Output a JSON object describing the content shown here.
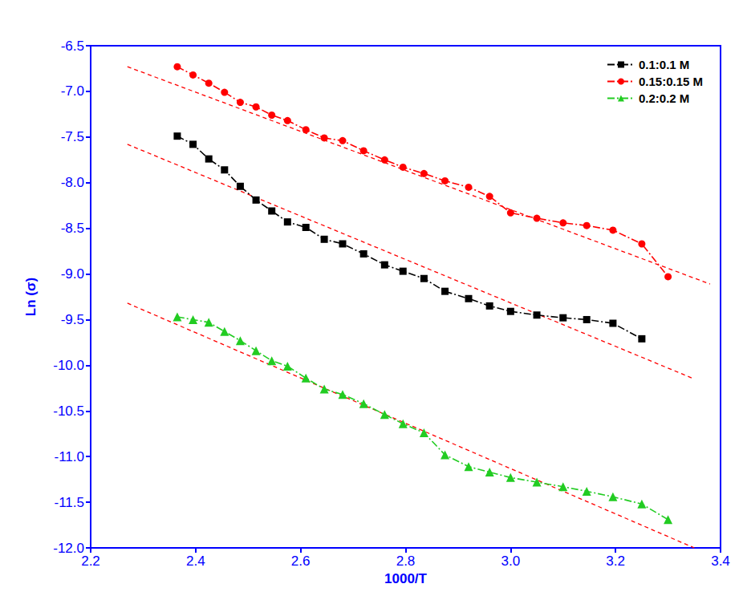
{
  "chart_data": {
    "type": "line",
    "x_label": "1000/T",
    "y_label": "Ln (σ)",
    "xlim": [
      2.2,
      3.4
    ],
    "xticks": [
      2.2,
      2.4,
      2.6,
      2.8,
      {
        "value": 3.0,
        "label": "3.0"
      },
      3.2,
      3.4
    ],
    "ylim": [
      -12.0,
      -6.5
    ],
    "yticks": [
      {
        "value": -12.0,
        "label": "-12.0"
      },
      -11.5,
      {
        "value": -11.0,
        "label": "-11.0"
      },
      -10.5,
      {
        "value": -10.0,
        "label": "-10.0"
      },
      -9.5,
      {
        "value": -9.0,
        "label": "-9.0"
      },
      -8.5,
      {
        "value": -8.0,
        "label": "-8.0"
      },
      -7.5,
      {
        "value": -7.0,
        "label": "-7.0"
      },
      -6.5
    ],
    "grid": false,
    "legend": "upper right",
    "series": [
      {
        "name": "0.1:0.1 M",
        "color": "#000000",
        "marker": "square",
        "line_style": "dashdot",
        "x": [
          2.365,
          2.395,
          2.425,
          2.455,
          2.485,
          2.515,
          2.545,
          2.575,
          2.61,
          2.645,
          2.68,
          2.72,
          2.76,
          2.795,
          2.835,
          2.875,
          2.92,
          2.96,
          3.0,
          3.05,
          3.1,
          3.145,
          3.195,
          3.25
        ],
        "values": [
          -7.49,
          -7.58,
          -7.74,
          -7.86,
          -8.04,
          -8.19,
          -8.31,
          -8.43,
          -8.49,
          -8.62,
          -8.67,
          -8.78,
          -8.9,
          -8.97,
          -9.05,
          -9.19,
          -9.27,
          -9.35,
          -9.41,
          -9.45,
          -9.48,
          -9.5,
          -9.54,
          -9.71
        ]
      },
      {
        "name": "0.15:0.15 M",
        "color": "#ff0000",
        "marker": "circle",
        "line_style": "dashdot",
        "x": [
          2.365,
          2.395,
          2.425,
          2.455,
          2.485,
          2.515,
          2.545,
          2.575,
          2.61,
          2.645,
          2.68,
          2.72,
          2.76,
          2.795,
          2.835,
          2.875,
          2.92,
          2.96,
          3.0,
          3.05,
          3.1,
          3.145,
          3.195,
          3.25,
          3.3
        ],
        "values": [
          -6.73,
          -6.82,
          -6.91,
          -7.01,
          -7.12,
          -7.17,
          -7.26,
          -7.32,
          -7.42,
          -7.51,
          -7.54,
          -7.65,
          -7.75,
          -7.83,
          -7.9,
          -7.98,
          -8.05,
          -8.15,
          -8.33,
          -8.39,
          -8.44,
          -8.47,
          -8.52,
          -8.67,
          -9.03
        ]
      },
      {
        "name": "0.2:0.2 M",
        "color": "#22cc22",
        "marker": "triangle",
        "line_style": "dashdot",
        "x": [
          2.365,
          2.395,
          2.425,
          2.455,
          2.485,
          2.515,
          2.545,
          2.575,
          2.61,
          2.645,
          2.68,
          2.72,
          2.76,
          2.795,
          2.835,
          2.875,
          2.92,
          2.96,
          3.0,
          3.05,
          3.1,
          3.145,
          3.195,
          3.25,
          3.3
        ],
        "values": [
          -9.47,
          -9.5,
          -9.53,
          -9.63,
          -9.73,
          -9.84,
          -9.95,
          -10.01,
          -10.14,
          -10.26,
          -10.32,
          -10.42,
          -10.54,
          -10.64,
          -10.74,
          -10.98,
          -11.11,
          -11.17,
          -11.23,
          -11.28,
          -11.33,
          -11.38,
          -11.44,
          -11.52,
          -11.69
        ]
      }
    ],
    "fit_lines": [
      {
        "x": [
          2.27,
          3.38
        ],
        "values": [
          -6.73,
          -9.11
        ],
        "color": "#ff0000",
        "line_style": "dashed"
      },
      {
        "x": [
          2.27,
          3.35
        ],
        "values": [
          -7.58,
          -10.15
        ],
        "color": "#ff0000",
        "line_style": "dashed"
      },
      {
        "x": [
          2.27,
          3.35
        ],
        "values": [
          -9.32,
          -12.0
        ],
        "color": "#ff0000",
        "line_style": "dashed"
      }
    ]
  }
}
